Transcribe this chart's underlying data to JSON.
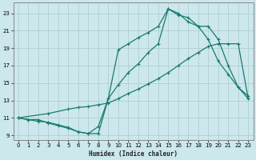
{
  "xlabel": "Humidex (Indice chaleur)",
  "ylabel": "",
  "bg_color": "#cce8ec",
  "line_color": "#1a7a6e",
  "grid_color": "#b0d0d4",
  "xlim": [
    -0.5,
    23.5
  ],
  "ylim": [
    8.5,
    24.2
  ],
  "xticks": [
    0,
    1,
    2,
    3,
    4,
    5,
    6,
    7,
    8,
    9,
    10,
    11,
    12,
    13,
    14,
    15,
    16,
    17,
    18,
    19,
    20,
    21,
    22,
    23
  ],
  "yticks": [
    9,
    11,
    13,
    15,
    17,
    19,
    21,
    23
  ],
  "line1_x": [
    0,
    1,
    2,
    3,
    4,
    5,
    6,
    7,
    8,
    9,
    10,
    11,
    12,
    13,
    14,
    15,
    16,
    17,
    18,
    19,
    20,
    21,
    22,
    23
  ],
  "line1_y": [
    11,
    10.8,
    10.8,
    10.4,
    10.1,
    9.8,
    9.4,
    9.2,
    9.2,
    13.2,
    14.8,
    16.2,
    17.2,
    18.5,
    19.5,
    23.5,
    22.8,
    22.5,
    21.5,
    20.0,
    17.5,
    16.0,
    14.5,
    13.2
  ],
  "line2_x": [
    0,
    3,
    5,
    6,
    7,
    8,
    9,
    10,
    11,
    12,
    13,
    14,
    15,
    16,
    17,
    18,
    19,
    20,
    21,
    22,
    23
  ],
  "line2_y": [
    11,
    11.5,
    12.0,
    12.2,
    12.3,
    12.5,
    12.7,
    13.2,
    13.8,
    14.3,
    14.9,
    15.5,
    16.2,
    17.0,
    17.8,
    18.5,
    19.2,
    19.5,
    19.5,
    19.5,
    13.2
  ],
  "line3_x": [
    0,
    1,
    2,
    3,
    4,
    5,
    6,
    7,
    8,
    9,
    10,
    11,
    12,
    13,
    14,
    15,
    16,
    17,
    18,
    19,
    20,
    21,
    22,
    23
  ],
  "line3_y": [
    11,
    10.8,
    10.6,
    10.5,
    10.2,
    9.9,
    9.4,
    9.2,
    10.0,
    13.2,
    18.8,
    19.5,
    20.2,
    20.8,
    21.5,
    23.5,
    23.0,
    22.0,
    21.5,
    21.5,
    20.0,
    17.0,
    14.5,
    13.5
  ]
}
